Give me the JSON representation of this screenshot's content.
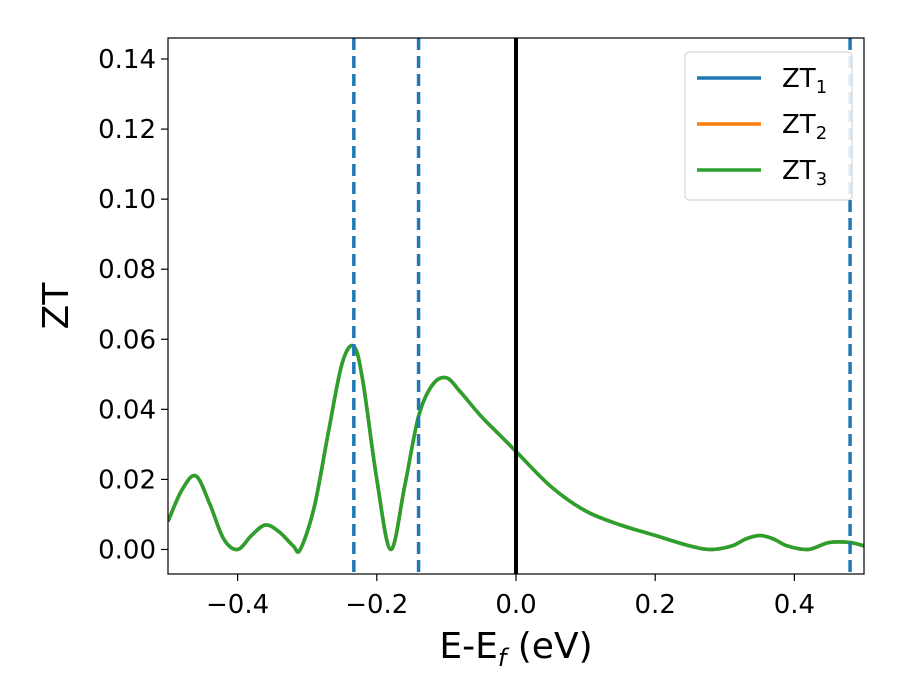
{
  "chart_data": {
    "type": "line",
    "xlabel": "E-E",
    "xlabel_sub": "f",
    "xlabel_units": " (eV)",
    "ylabel": "ZT",
    "xlim": [
      -0.5,
      0.5
    ],
    "ylim": [
      -0.007,
      0.146
    ],
    "xticks": [
      -0.4,
      -0.2,
      0.0,
      0.2,
      0.4
    ],
    "xtick_labels": [
      "−0.4",
      "−0.2",
      "0.0",
      "0.2",
      "0.4"
    ],
    "yticks": [
      0.0,
      0.02,
      0.04,
      0.06,
      0.08,
      0.1,
      0.12,
      0.14
    ],
    "ytick_labels": [
      "0.00",
      "0.02",
      "0.04",
      "0.06",
      "0.08",
      "0.10",
      "0.12",
      "0.14"
    ],
    "legend_position": "top-right",
    "legend_prefix": "ZT",
    "grid": false,
    "vlines": [
      {
        "x": 0.0,
        "style": "solid",
        "color": "#000000"
      },
      {
        "x": -0.233,
        "style": "dashed",
        "color": "#1f77b4"
      },
      {
        "x": -0.14,
        "style": "dashed",
        "color": "#1f77b4"
      },
      {
        "x": 0.48,
        "style": "dashed",
        "color": "#1f77b4"
      }
    ],
    "x": [
      -0.5,
      -0.48,
      -0.46,
      -0.44,
      -0.42,
      -0.4,
      -0.38,
      -0.36,
      -0.34,
      -0.32,
      -0.31,
      -0.29,
      -0.27,
      -0.25,
      -0.233,
      -0.22,
      -0.2,
      -0.18,
      -0.16,
      -0.14,
      -0.12,
      -0.1,
      -0.08,
      -0.05,
      -0.02,
      0.0,
      0.05,
      0.1,
      0.15,
      0.2,
      0.25,
      0.28,
      0.31,
      0.33,
      0.35,
      0.37,
      0.39,
      0.42,
      0.45,
      0.48,
      0.5
    ],
    "series": [
      {
        "name": "1",
        "color": "#1f77b4",
        "values": [
          0.008,
          0.017,
          0.021,
          0.013,
          0.003,
          0.0,
          0.004,
          0.007,
          0.005,
          0.001,
          0.0,
          0.012,
          0.033,
          0.053,
          0.058,
          0.048,
          0.02,
          0.0,
          0.018,
          0.038,
          0.047,
          0.049,
          0.045,
          0.038,
          0.032,
          0.028,
          0.018,
          0.011,
          0.007,
          0.004,
          0.001,
          0.0,
          0.001,
          0.003,
          0.004,
          0.003,
          0.001,
          0.0,
          0.002,
          0.002,
          0.001
        ]
      },
      {
        "name": "2",
        "color": "#ff7f0e",
        "values": [
          0.008,
          0.017,
          0.021,
          0.013,
          0.003,
          0.0,
          0.004,
          0.007,
          0.005,
          0.001,
          0.0,
          0.012,
          0.033,
          0.053,
          0.058,
          0.048,
          0.02,
          0.0,
          0.018,
          0.038,
          0.047,
          0.049,
          0.045,
          0.038,
          0.032,
          0.028,
          0.018,
          0.011,
          0.007,
          0.004,
          0.001,
          0.0,
          0.001,
          0.003,
          0.004,
          0.003,
          0.001,
          0.0,
          0.002,
          0.002,
          0.001
        ]
      },
      {
        "name": "3",
        "color": "#2ca02c",
        "values": [
          0.008,
          0.017,
          0.021,
          0.013,
          0.003,
          0.0,
          0.004,
          0.007,
          0.005,
          0.001,
          0.0,
          0.012,
          0.033,
          0.053,
          0.058,
          0.048,
          0.02,
          0.0,
          0.018,
          0.038,
          0.047,
          0.049,
          0.045,
          0.038,
          0.032,
          0.028,
          0.018,
          0.011,
          0.007,
          0.004,
          0.001,
          0.0,
          0.001,
          0.003,
          0.004,
          0.003,
          0.001,
          0.0,
          0.002,
          0.002,
          0.001
        ]
      }
    ]
  }
}
